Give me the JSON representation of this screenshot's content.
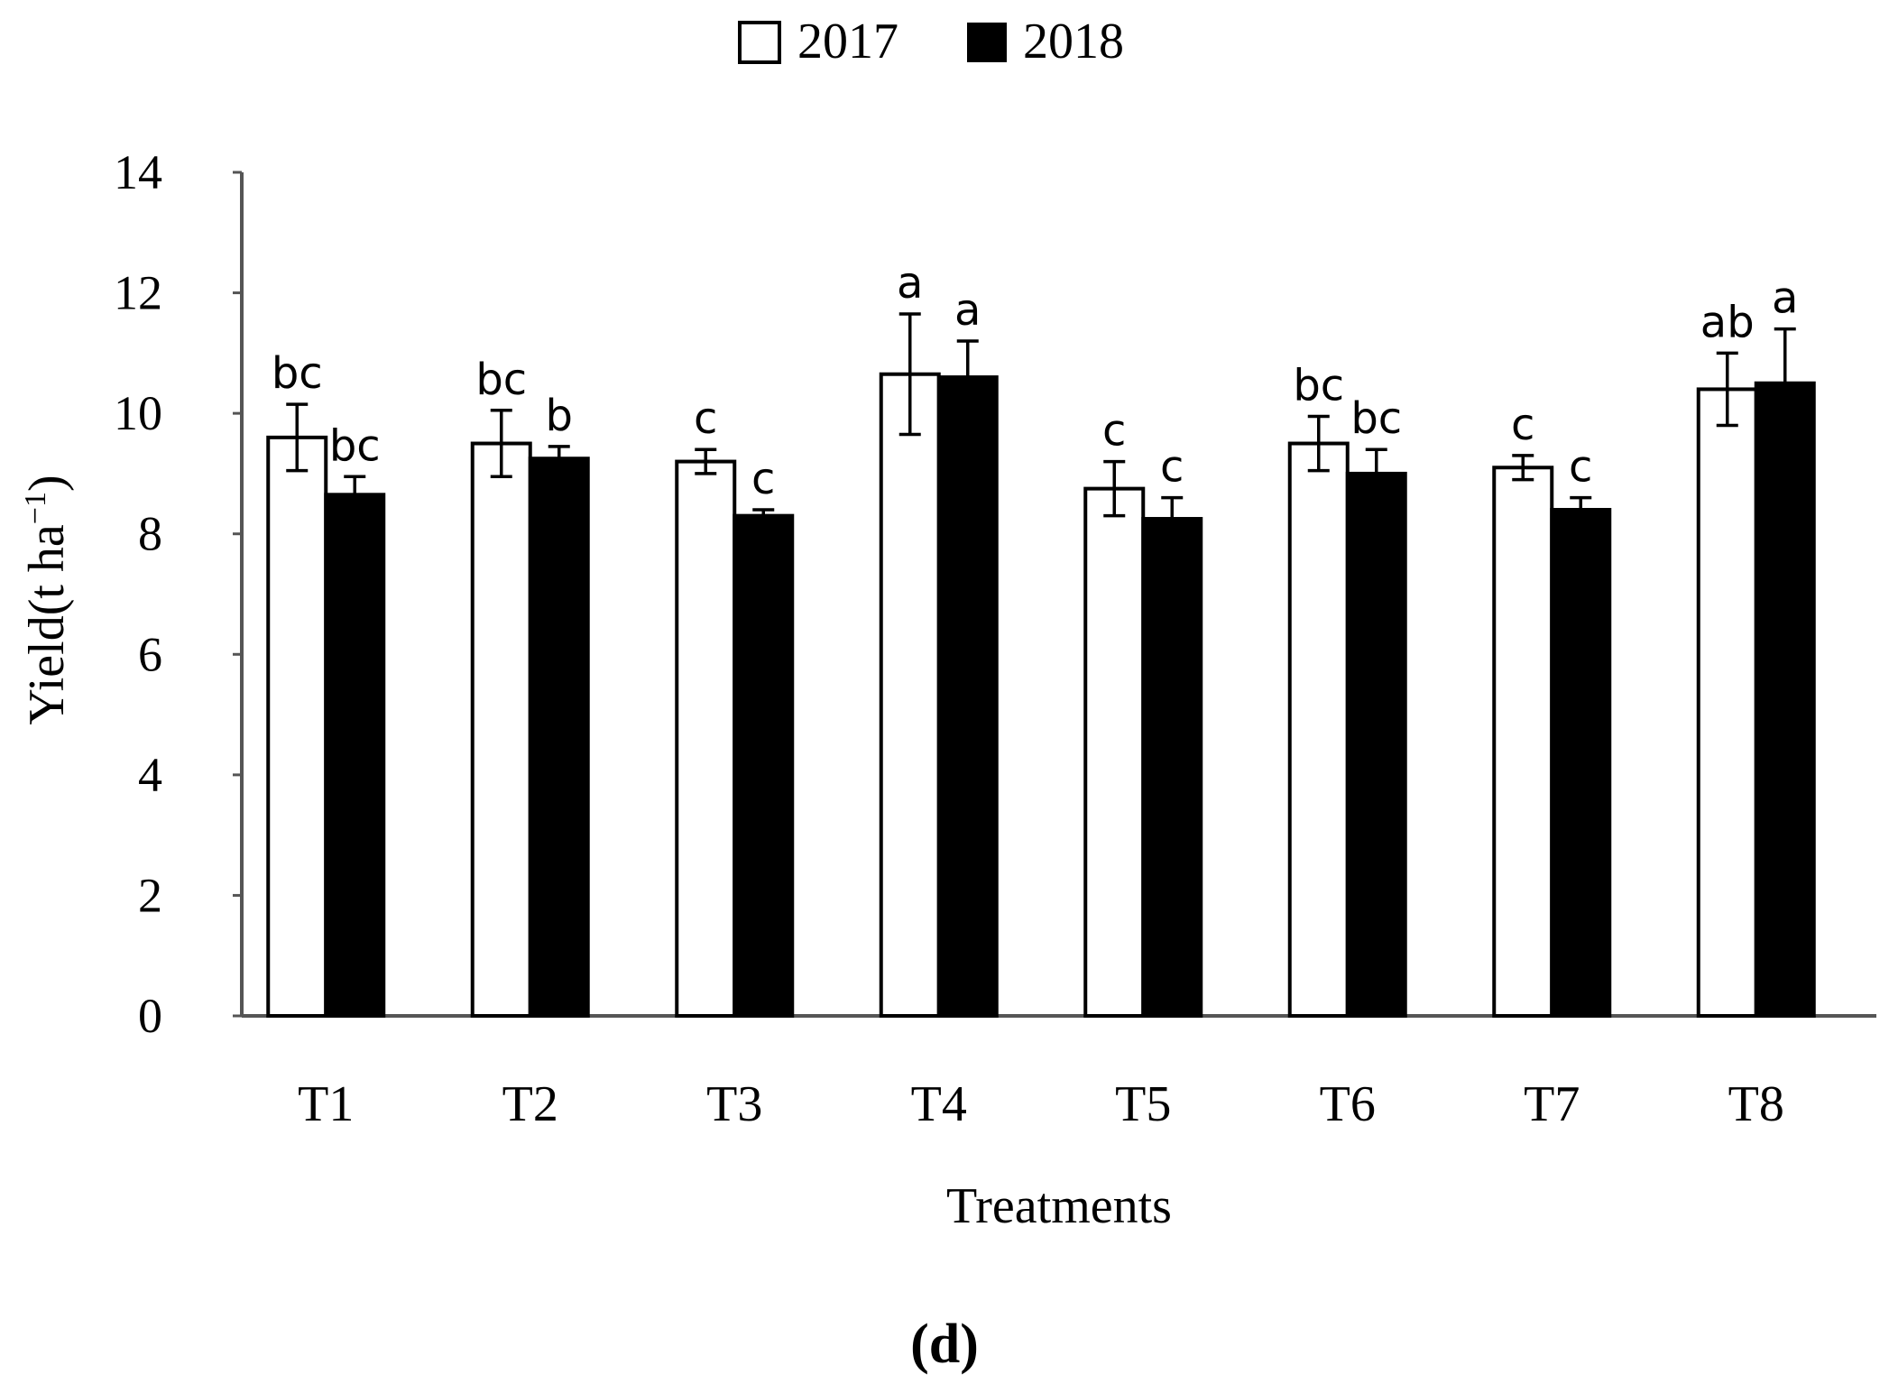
{
  "chart_data": {
    "type": "bar",
    "panel_label": "(d)",
    "xlabel": "Treatments",
    "ylabel": "Yield(t ha",
    "ylabel_superscript": "−1",
    "ylabel_close": ")",
    "ylim": [
      0,
      14
    ],
    "yticks": [
      0,
      2,
      4,
      6,
      8,
      10,
      12,
      14
    ],
    "grid": false,
    "legend_position": "top-center",
    "categories": [
      "T1",
      "T2",
      "T3",
      "T4",
      "T5",
      "T6",
      "T7",
      "T8"
    ],
    "series": [
      {
        "name": "2017",
        "fill": "#ffffff",
        "values": [
          9.6,
          9.5,
          9.2,
          10.65,
          8.75,
          9.5,
          9.1,
          10.4
        ],
        "errors": [
          0.55,
          0.55,
          0.2,
          1.0,
          0.45,
          0.45,
          0.2,
          0.6
        ],
        "labels": [
          "bc",
          "bc",
          "c",
          "a",
          "c",
          "bc",
          "c",
          "ab"
        ]
      },
      {
        "name": "2018",
        "fill": "#000000",
        "values": [
          8.65,
          9.25,
          8.3,
          10.6,
          8.25,
          9.0,
          8.4,
          10.5
        ],
        "errors": [
          0.3,
          0.2,
          0.1,
          0.6,
          0.35,
          0.4,
          0.2,
          0.9
        ],
        "labels": [
          "bc",
          "b",
          "c",
          "a",
          "c",
          "bc",
          "c",
          "a"
        ]
      }
    ]
  }
}
